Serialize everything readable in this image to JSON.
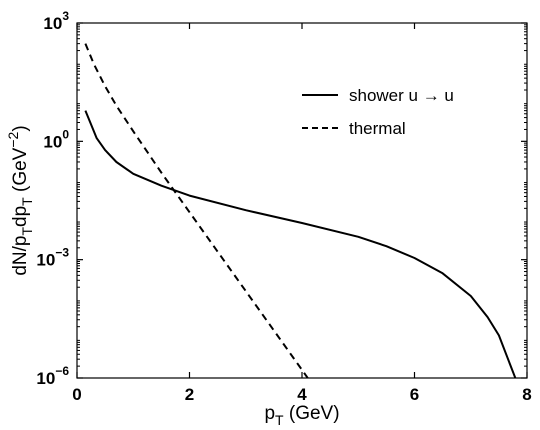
{
  "chart_data": {
    "type": "line",
    "xlabel": {
      "main": "p",
      "sub": "T",
      "unit": " (GeV)"
    },
    "ylabel": {
      "parts": [
        {
          "t": "dN/p",
          "k": "n"
        },
        {
          "t": "T",
          "k": "sub"
        },
        {
          "t": "dp",
          "k": "n"
        },
        {
          "t": "T",
          "k": "sub"
        },
        {
          "t": " (GeV",
          "k": "n"
        },
        {
          "t": "−2",
          "k": "sup"
        },
        {
          "t": ")",
          "k": "n"
        }
      ]
    },
    "xlim": [
      0,
      8
    ],
    "ylim": [
      1e-06,
      1000
    ],
    "y_scale": "log",
    "x_ticks": [
      {
        "value": 0,
        "label": "0"
      },
      {
        "value": 2,
        "label": "2"
      },
      {
        "value": 4,
        "label": "4"
      },
      {
        "value": 6,
        "label": "6"
      },
      {
        "value": 8,
        "label": "8"
      }
    ],
    "y_ticks": [
      {
        "value": 1e-06,
        "base": "10",
        "exp": "−6"
      },
      {
        "value": 0.001,
        "base": "10",
        "exp": "−3"
      },
      {
        "value": 1,
        "base": "10",
        "exp": "0"
      },
      {
        "value": 1000,
        "base": "10",
        "exp": "3"
      }
    ],
    "legend_position": "top-right",
    "series": [
      {
        "name": "shower u → u",
        "style": "solid",
        "x": [
          0.15,
          0.35,
          0.5,
          0.7,
          1.0,
          1.5,
          2.0,
          3.0,
          4.0,
          5.0,
          5.5,
          6.0,
          6.5,
          7.0,
          7.3,
          7.5,
          7.7,
          7.9
        ],
        "y": [
          6,
          1.2,
          0.6,
          0.3,
          0.15,
          0.075,
          0.042,
          0.018,
          0.0085,
          0.0038,
          0.0022,
          0.0011,
          0.00045,
          0.00012,
          3.5e-05,
          1.2e-05,
          2.2e-06,
          4e-07
        ]
      },
      {
        "name": "thermal",
        "style": "dashed",
        "x": [
          0.15,
          0.3,
          0.5,
          0.7,
          1.0,
          1.5,
          2.0,
          3.0,
          4.0,
          5.0
        ],
        "y": [
          300,
          90,
          25,
          8,
          1.8,
          0.16,
          0.016,
          0.00016,
          1.6e-06,
          1.5e-08
        ]
      }
    ]
  }
}
